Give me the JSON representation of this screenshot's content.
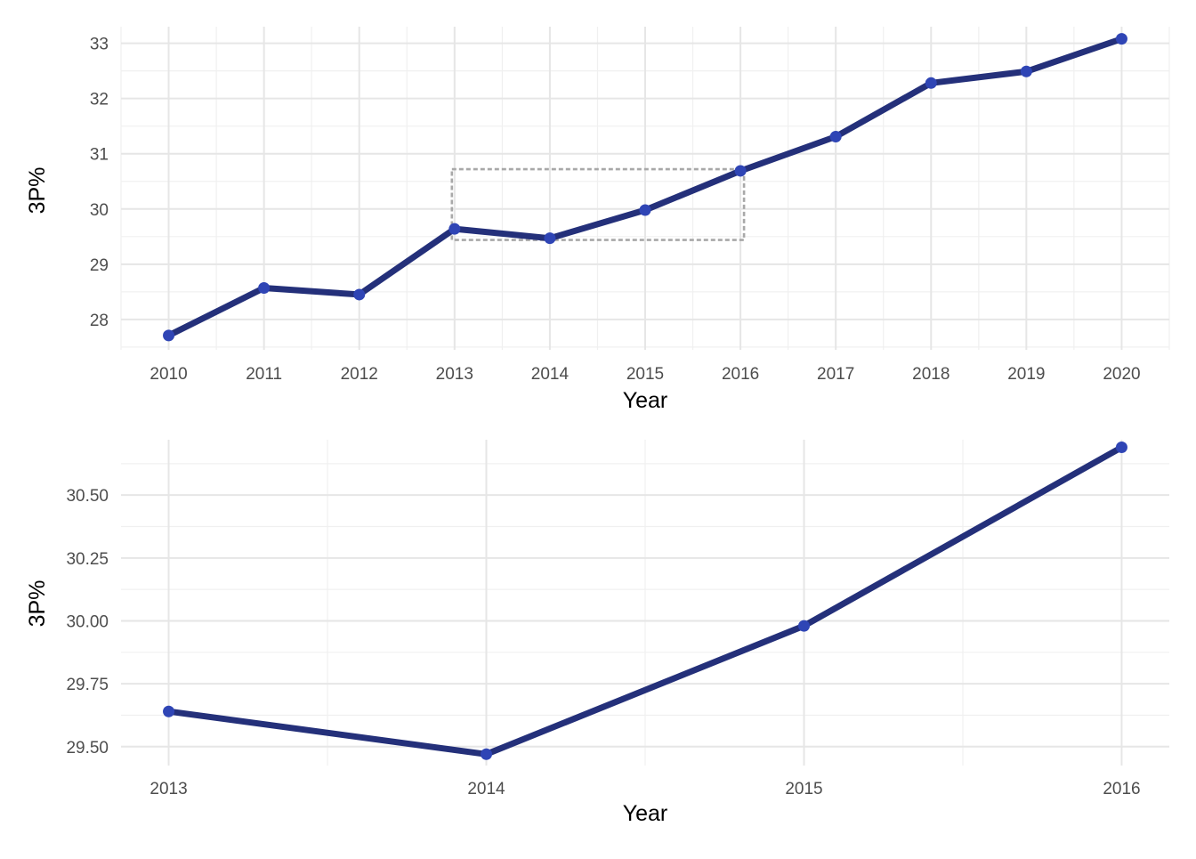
{
  "colors": {
    "line": "#24307a",
    "point": "#2f45b5",
    "zoom_box": "#a8a8a8",
    "grid_major": "#e6e6e6",
    "grid_minor": "#f0f0f0"
  },
  "chart_data": [
    {
      "type": "line",
      "xlabel": "Year",
      "ylabel": "3P%",
      "x": [
        2010,
        2011,
        2012,
        2013,
        2014,
        2015,
        2016,
        2017,
        2018,
        2019,
        2020
      ],
      "y": [
        27.71,
        28.57,
        28.45,
        29.64,
        29.47,
        29.98,
        30.69,
        31.31,
        32.28,
        32.49,
        33.08
      ],
      "xlim": [
        2009.5,
        2020.5
      ],
      "ylim": [
        27.45,
        33.3
      ],
      "x_ticks": [
        2010,
        2011,
        2012,
        2013,
        2014,
        2015,
        2016,
        2017,
        2018,
        2019,
        2020
      ],
      "x_tick_labels": [
        "2010",
        "2011",
        "2012",
        "2013",
        "2014",
        "2015",
        "2016",
        "2017",
        "2018",
        "2019",
        "2020"
      ],
      "y_ticks": [
        28,
        29,
        30,
        31,
        32,
        33
      ],
      "y_tick_labels": [
        "28",
        "29",
        "30",
        "31",
        "32",
        "33"
      ],
      "grid": true,
      "zoom_box": {
        "x": [
          2013,
          2016
        ],
        "y": [
          29.44,
          30.72
        ]
      }
    },
    {
      "type": "line",
      "xlabel": "Year",
      "ylabel": "3P%",
      "x": [
        2013,
        2014,
        2015,
        2016
      ],
      "y": [
        29.64,
        29.47,
        29.98,
        30.69
      ],
      "xlim": [
        2012.85,
        2016.15
      ],
      "ylim": [
        29.425,
        30.72
      ],
      "x_ticks": [
        2013,
        2014,
        2015,
        2016
      ],
      "x_tick_labels": [
        "2013",
        "2014",
        "2015",
        "2016"
      ],
      "y_ticks": [
        29.5,
        29.75,
        30.0,
        30.25,
        30.5
      ],
      "y_tick_labels": [
        "29.50",
        "29.75",
        "30.00",
        "30.25",
        "30.50"
      ],
      "grid": true
    }
  ]
}
